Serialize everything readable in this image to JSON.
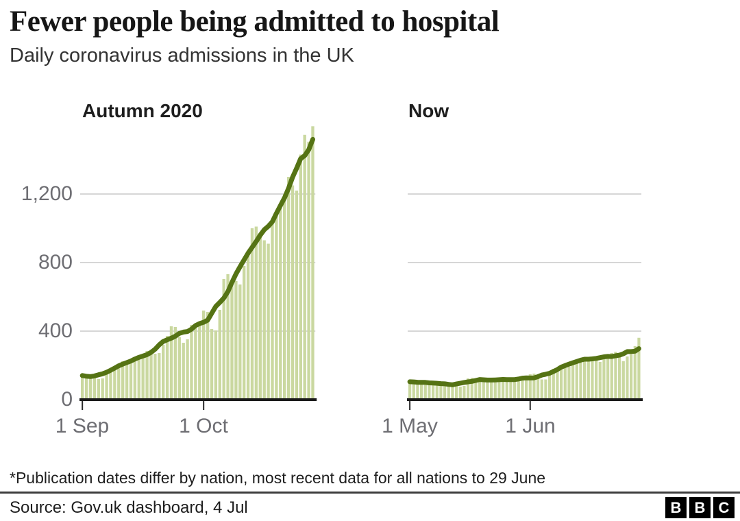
{
  "header": {
    "title": "Fewer people being admitted to hospital",
    "subtitle": "Daily coronavirus admissions in the UK"
  },
  "axis": {
    "y_tick_labels": [
      "1,200",
      "800",
      "400",
      "0"
    ],
    "y_tick_values": [
      1200,
      800,
      400,
      0
    ]
  },
  "chart_data": [
    {
      "type": "bar",
      "panel_title": "Autumn 2020",
      "series_note": "daily admissions bars with 7-day average line",
      "x_tick_labels": [
        "1 Sep",
        "1 Oct"
      ],
      "x_tick_day_indices": [
        0,
        30
      ],
      "date_range": [
        "1 Sep 2020",
        "28 Oct 2020"
      ],
      "ylim": [
        0,
        1600
      ],
      "grid_values": [
        400,
        800,
        1200
      ],
      "bars": [
        132,
        148,
        140,
        144,
        120,
        124,
        160,
        180,
        188,
        204,
        224,
        212,
        216,
        228,
        244,
        252,
        284,
        292,
        268,
        272,
        320,
        372,
        428,
        424,
        364,
        332,
        352,
        436,
        424,
        452,
        520,
        512,
        412,
        404,
        524,
        704,
        732,
        684,
        692,
        672,
        780,
        870,
        1000,
        1010,
        960,
        930,
        910,
        1040,
        1090,
        1140,
        1200,
        1300,
        1250,
        1220,
        1430,
        1545,
        1505,
        1595
      ],
      "line": {
        "name": "7-day rolling average",
        "method": "centered-mean-window-7"
      }
    },
    {
      "type": "bar",
      "panel_title": "Now",
      "series_note": "daily admissions bars with 7-day average line",
      "x_tick_labels": [
        "1 May",
        "1 Jun"
      ],
      "x_tick_day_indices": [
        0,
        31
      ],
      "date_range": [
        "1 May 2021",
        "29 Jun 2021"
      ],
      "ylim": [
        0,
        1600
      ],
      "grid_values": [
        400,
        800,
        1200
      ],
      "bars": [
        100,
        112,
        100,
        105,
        100,
        92,
        100,
        96,
        92,
        96,
        92,
        88,
        84,
        76,
        80,
        124,
        128,
        124,
        112,
        105,
        112,
        118,
        112,
        118,
        124,
        118,
        112,
        124,
        112,
        112,
        118,
        148,
        152,
        124,
        118,
        118,
        164,
        180,
        184,
        190,
        200,
        192,
        220,
        228,
        236,
        240,
        245,
        252,
        232,
        220,
        240,
        256,
        272,
        279,
        268,
        225,
        252,
        265,
        312,
        361
      ],
      "line": {
        "name": "7-day rolling average",
        "method": "centered-mean-window-7"
      }
    }
  ],
  "footer": {
    "footnote": "*Publication dates differ by nation, most recent data for all nations to 29 June",
    "source": "Source: Gov.uk dashboard, 4 Jul",
    "logo_letters": [
      "B",
      "B",
      "C"
    ]
  },
  "colors": {
    "bar": "#cad8a0",
    "line": "#557314",
    "axis_line": "#1a1a1a",
    "grid": "#c9c9c9",
    "tick": "#2b2b2b",
    "label_gray": "#6e6e73"
  }
}
